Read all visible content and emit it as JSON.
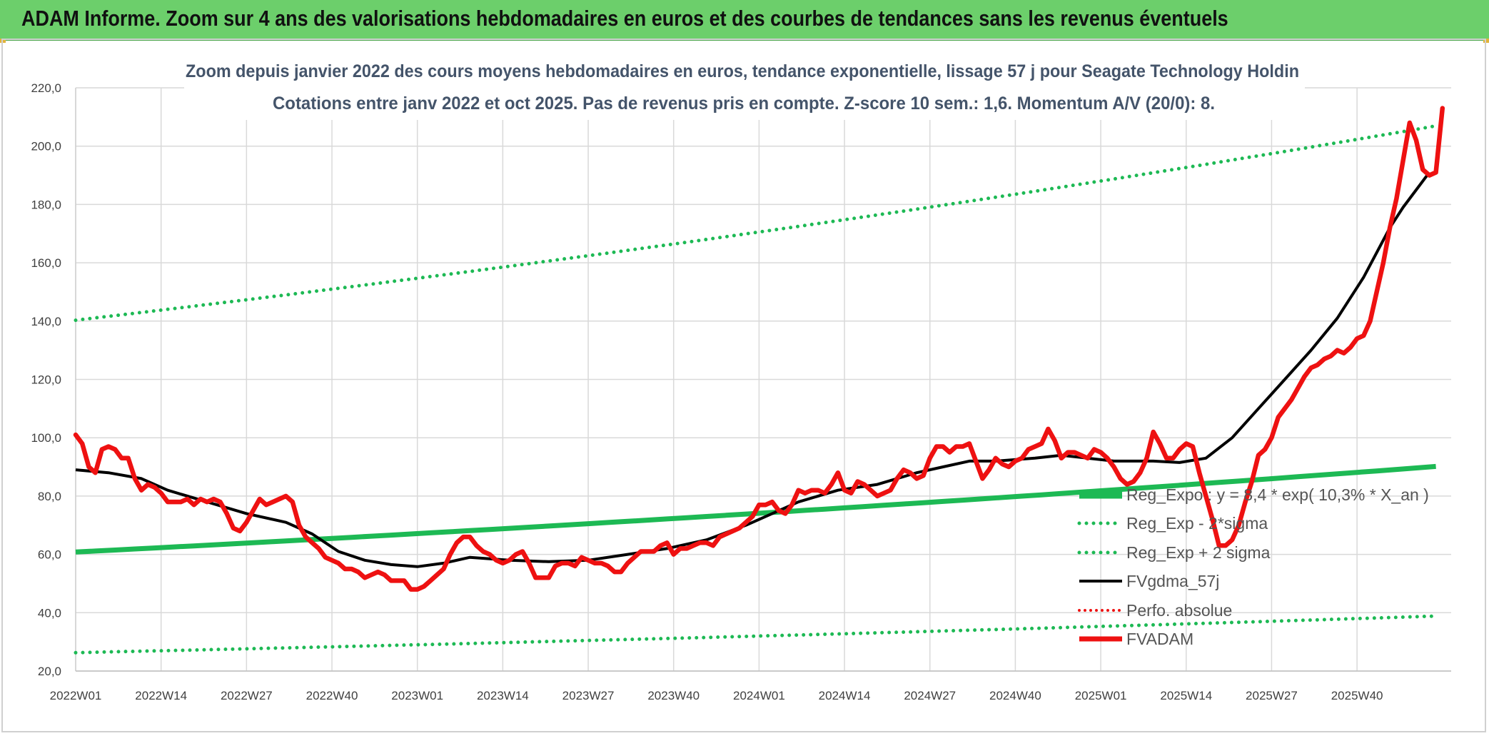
{
  "banner": {
    "title": "ADAM Informe. Zoom sur 4 ans des valorisations hebdomadaires en euros et des courbes de tendances sans les revenus éventuels"
  },
  "colors": {
    "banner_bg": "#6ccf6b",
    "trend": "#1db954",
    "price": "#ee1111",
    "average": "#000000",
    "perf": "#ee1111"
  },
  "chart_data": {
    "type": "line",
    "title_line1": "Zoom depuis janvier 2022 des cours moyens hebdomadaires en euros, tendance exponentielle, lissage 57 j pour Seagate Technology Holdin",
    "title_line2": "Cotations entre janv 2022 et oct 2025. Pas de revenus pris en compte. Z-score 10 sem.: 1,6. Momentum A/V (20/0): 8.",
    "ylim": [
      20,
      220
    ],
    "y_ticks": [
      "20,0",
      "40,0",
      "60,0",
      "80,0",
      "100,0",
      "120,0",
      "140,0",
      "160,0",
      "180,0",
      "200,0",
      "220,0"
    ],
    "x_ticks": [
      "2022W01",
      "2022W14",
      "2022W27",
      "2022W40",
      "2023W01",
      "2023W14",
      "2023W27",
      "2023W40",
      "2024W01",
      "2024W14",
      "2024W27",
      "2024W40",
      "2025W01",
      "2025W14",
      "2025W27",
      "2025W40"
    ],
    "x_tick_weeks": [
      0,
      13,
      26,
      39,
      52,
      65,
      78,
      91,
      104,
      117,
      130,
      143,
      156,
      169,
      182,
      195
    ],
    "n_weeks": 205,
    "series": [
      {
        "name": "Reg_Expo : y = 8,4 * exp( 10,3% *  X_an )",
        "style": "thick",
        "start": 60.8,
        "end": 90.5
      },
      {
        "name": "Reg_Exp - 2*sigma",
        "style": "dotted",
        "start": 26.3,
        "end": 39.0
      },
      {
        "name": "Reg_Exp + 2 sigma",
        "style": "dotted",
        "start": 140.3,
        "end": 207.7
      },
      {
        "name": "FVgdma_57j",
        "style": "line",
        "points": [
          [
            0,
            89
          ],
          [
            5,
            88
          ],
          [
            10,
            86
          ],
          [
            14,
            82
          ],
          [
            20,
            78
          ],
          [
            26,
            74
          ],
          [
            32,
            71
          ],
          [
            36,
            67
          ],
          [
            40,
            61
          ],
          [
            44,
            58
          ],
          [
            48,
            56.5
          ],
          [
            52,
            55.8
          ],
          [
            56,
            57
          ],
          [
            60,
            59
          ],
          [
            66,
            58
          ],
          [
            72,
            57.5
          ],
          [
            78,
            58
          ],
          [
            84,
            60
          ],
          [
            90,
            62
          ],
          [
            96,
            65
          ],
          [
            102,
            70
          ],
          [
            106,
            74
          ],
          [
            110,
            78
          ],
          [
            116,
            82
          ],
          [
            122,
            84
          ],
          [
            128,
            88
          ],
          [
            132,
            90
          ],
          [
            136,
            92
          ],
          [
            140,
            92
          ],
          [
            146,
            93
          ],
          [
            150,
            94
          ],
          [
            154,
            93
          ],
          [
            158,
            92
          ],
          [
            164,
            92
          ],
          [
            168,
            91.5
          ],
          [
            172,
            93
          ],
          [
            176,
            100
          ],
          [
            180,
            110
          ],
          [
            184,
            120
          ],
          [
            188,
            130
          ],
          [
            192,
            141
          ],
          [
            196,
            155
          ],
          [
            200,
            172
          ],
          [
            202,
            179
          ],
          [
            204,
            185
          ],
          [
            206,
            191
          ]
        ]
      },
      {
        "name": "Perfo. absolue",
        "style": "dotted-red",
        "points": []
      },
      {
        "name": "FVADAM",
        "style": "thick-red",
        "points": [
          [
            0,
            101
          ],
          [
            1,
            98
          ],
          [
            2,
            90
          ],
          [
            3,
            88
          ],
          [
            4,
            96
          ],
          [
            5,
            97
          ],
          [
            6,
            96
          ],
          [
            7,
            93
          ],
          [
            8,
            93
          ],
          [
            9,
            86
          ],
          [
            10,
            82
          ],
          [
            11,
            84
          ],
          [
            12,
            83
          ],
          [
            13,
            81
          ],
          [
            14,
            78
          ],
          [
            15,
            78
          ],
          [
            16,
            78
          ],
          [
            17,
            79
          ],
          [
            18,
            77
          ],
          [
            19,
            79
          ],
          [
            20,
            78
          ],
          [
            21,
            79
          ],
          [
            22,
            78
          ],
          [
            23,
            74
          ],
          [
            24,
            69
          ],
          [
            25,
            68
          ],
          [
            26,
            71
          ],
          [
            27,
            75
          ],
          [
            28,
            79
          ],
          [
            29,
            77
          ],
          [
            30,
            78
          ],
          [
            31,
            79
          ],
          [
            32,
            80
          ],
          [
            33,
            78
          ],
          [
            34,
            70
          ],
          [
            35,
            66
          ],
          [
            36,
            64
          ],
          [
            37,
            62
          ],
          [
            38,
            59
          ],
          [
            39,
            58
          ],
          [
            40,
            57
          ],
          [
            41,
            55
          ],
          [
            42,
            55
          ],
          [
            43,
            54
          ],
          [
            44,
            52
          ],
          [
            45,
            53
          ],
          [
            46,
            54
          ],
          [
            47,
            53
          ],
          [
            48,
            51
          ],
          [
            49,
            51
          ],
          [
            50,
            51
          ],
          [
            51,
            48
          ],
          [
            52,
            48
          ],
          [
            53,
            49
          ],
          [
            54,
            51
          ],
          [
            55,
            53
          ],
          [
            56,
            55
          ],
          [
            57,
            60
          ],
          [
            58,
            64
          ],
          [
            59,
            66
          ],
          [
            60,
            66
          ],
          [
            61,
            63
          ],
          [
            62,
            61
          ],
          [
            63,
            60
          ],
          [
            64,
            58
          ],
          [
            65,
            57
          ],
          [
            66,
            58
          ],
          [
            67,
            60
          ],
          [
            68,
            61
          ],
          [
            69,
            57
          ],
          [
            70,
            52
          ],
          [
            71,
            52
          ],
          [
            72,
            52
          ],
          [
            73,
            56
          ],
          [
            74,
            57
          ],
          [
            75,
            57
          ],
          [
            76,
            56
          ],
          [
            77,
            59
          ],
          [
            78,
            58
          ],
          [
            79,
            57
          ],
          [
            80,
            57
          ],
          [
            81,
            56
          ],
          [
            82,
            54
          ],
          [
            83,
            54
          ],
          [
            84,
            57
          ],
          [
            85,
            59
          ],
          [
            86,
            61
          ],
          [
            87,
            61
          ],
          [
            88,
            61
          ],
          [
            89,
            63
          ],
          [
            90,
            64
          ],
          [
            91,
            60
          ],
          [
            92,
            62
          ],
          [
            93,
            62
          ],
          [
            94,
            63
          ],
          [
            95,
            64
          ],
          [
            96,
            64
          ],
          [
            97,
            63
          ],
          [
            98,
            66
          ],
          [
            99,
            67
          ],
          [
            100,
            68
          ],
          [
            101,
            69
          ],
          [
            102,
            71
          ],
          [
            103,
            73
          ],
          [
            104,
            77
          ],
          [
            105,
            77
          ],
          [
            106,
            78
          ],
          [
            107,
            75
          ],
          [
            108,
            74
          ],
          [
            109,
            77
          ],
          [
            110,
            82
          ],
          [
            111,
            81
          ],
          [
            112,
            82
          ],
          [
            113,
            82
          ],
          [
            114,
            81
          ],
          [
            115,
            84
          ],
          [
            116,
            88
          ],
          [
            117,
            82
          ],
          [
            118,
            81
          ],
          [
            119,
            85
          ],
          [
            120,
            84
          ],
          [
            121,
            82
          ],
          [
            122,
            80
          ],
          [
            123,
            81
          ],
          [
            124,
            82
          ],
          [
            125,
            86
          ],
          [
            126,
            89
          ],
          [
            127,
            88
          ],
          [
            128,
            86
          ],
          [
            129,
            87
          ],
          [
            130,
            93
          ],
          [
            131,
            97
          ],
          [
            132,
            97
          ],
          [
            133,
            95
          ],
          [
            134,
            97
          ],
          [
            135,
            97
          ],
          [
            136,
            98
          ],
          [
            137,
            92
          ],
          [
            138,
            86
          ],
          [
            139,
            89
          ],
          [
            140,
            93
          ],
          [
            141,
            91
          ],
          [
            142,
            90
          ],
          [
            143,
            92
          ],
          [
            144,
            93
          ],
          [
            145,
            96
          ],
          [
            146,
            97
          ],
          [
            147,
            98
          ],
          [
            148,
            103
          ],
          [
            149,
            99
          ],
          [
            150,
            93
          ],
          [
            151,
            95
          ],
          [
            152,
            95
          ],
          [
            153,
            94
          ],
          [
            154,
            93
          ],
          [
            155,
            96
          ],
          [
            156,
            95
          ],
          [
            157,
            93
          ],
          [
            158,
            90
          ],
          [
            159,
            86
          ],
          [
            160,
            84
          ],
          [
            161,
            85
          ],
          [
            162,
            88
          ],
          [
            163,
            93
          ],
          [
            164,
            102
          ],
          [
            165,
            98
          ],
          [
            166,
            93
          ],
          [
            167,
            93
          ],
          [
            168,
            96
          ],
          [
            169,
            98
          ],
          [
            170,
            97
          ],
          [
            171,
            88
          ],
          [
            172,
            80
          ],
          [
            173,
            72
          ],
          [
            174,
            63
          ],
          [
            175,
            63
          ],
          [
            176,
            65
          ],
          [
            177,
            70
          ],
          [
            178,
            78
          ],
          [
            179,
            85
          ],
          [
            180,
            94
          ],
          [
            181,
            96
          ],
          [
            182,
            100
          ],
          [
            183,
            107
          ],
          [
            184,
            110
          ],
          [
            185,
            113
          ],
          [
            186,
            117
          ],
          [
            187,
            121
          ],
          [
            188,
            124
          ],
          [
            189,
            125
          ],
          [
            190,
            127
          ],
          [
            191,
            128
          ],
          [
            192,
            130
          ],
          [
            193,
            129
          ],
          [
            194,
            131
          ],
          [
            195,
            134
          ],
          [
            196,
            135
          ],
          [
            197,
            140
          ],
          [
            198,
            150
          ],
          [
            199,
            160
          ],
          [
            200,
            172
          ],
          [
            201,
            182
          ],
          [
            202,
            195
          ],
          [
            203,
            208
          ],
          [
            204,
            202
          ],
          [
            205,
            192
          ],
          [
            206,
            190
          ],
          [
            207,
            191
          ],
          [
            208,
            213
          ]
        ]
      }
    ],
    "legend_position": "lower-right"
  }
}
